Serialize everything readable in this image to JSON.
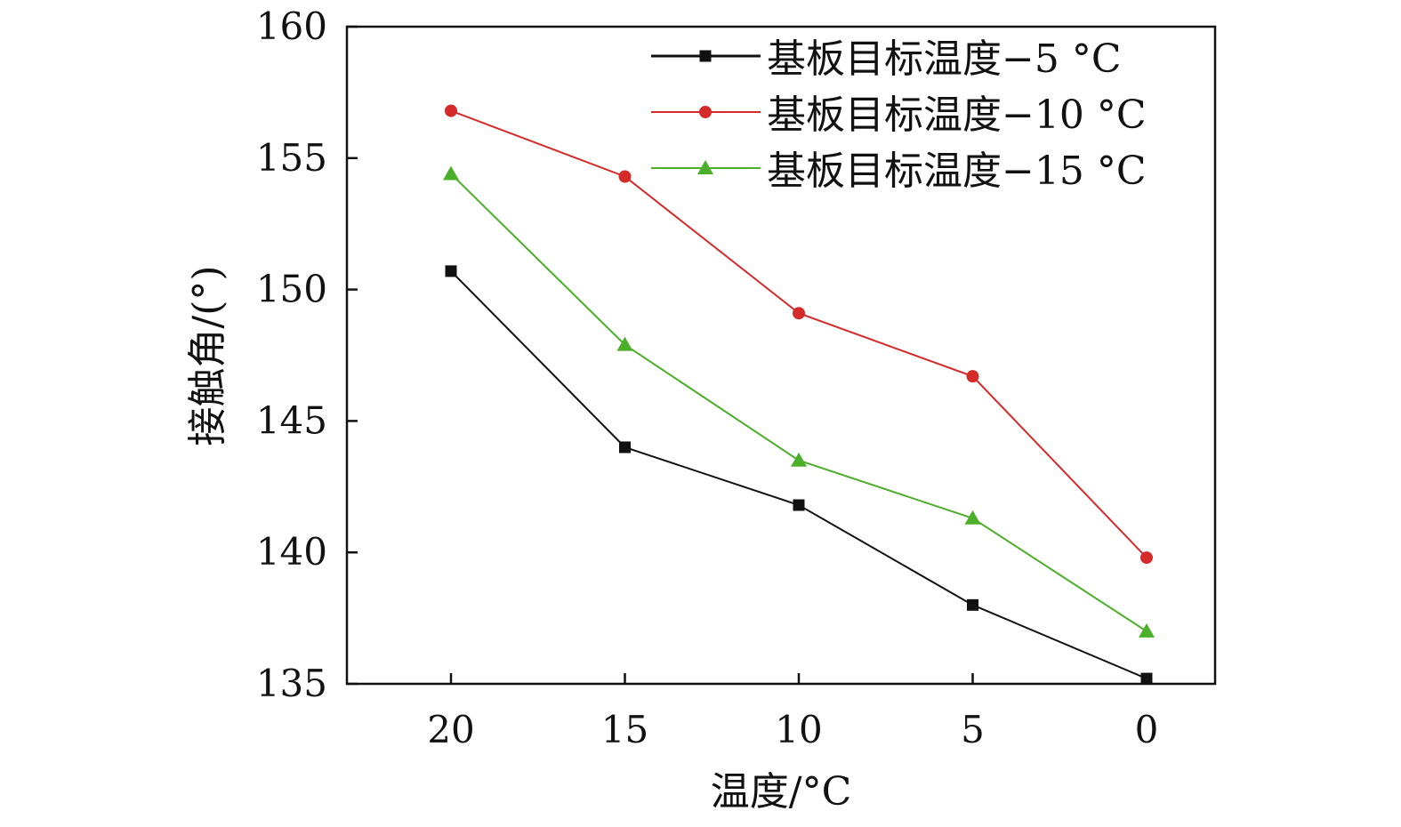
{
  "chart_data": {
    "type": "line",
    "title": "",
    "xlabel": "温度/°C",
    "ylabel": "接触角/(°)",
    "x": [
      20,
      15,
      10,
      5,
      0
    ],
    "x_tick_labels": [
      "20",
      "15",
      "10",
      "5",
      "0"
    ],
    "y_tick_labels": [
      "135",
      "140",
      "145",
      "150",
      "155",
      "160"
    ],
    "xlim": [
      23,
      -2
    ],
    "ylim": [
      135,
      160
    ],
    "x_reversed": true,
    "grid": false,
    "legend_position": "top-right",
    "series": [
      {
        "name": "基板目标温度−5 °C",
        "color": "#111111",
        "marker": "square",
        "values": [
          150.7,
          144.0,
          141.8,
          138.0,
          135.2
        ]
      },
      {
        "name": "基板目标温度−10 °C",
        "color": "#d42a2a",
        "marker": "circle",
        "values": [
          156.8,
          154.3,
          149.1,
          146.7,
          139.8
        ]
      },
      {
        "name": "基板目标温度−15 °C",
        "color": "#4caf2a",
        "marker": "triangle",
        "values": [
          154.4,
          147.9,
          143.5,
          141.3,
          137.0
        ]
      }
    ]
  }
}
